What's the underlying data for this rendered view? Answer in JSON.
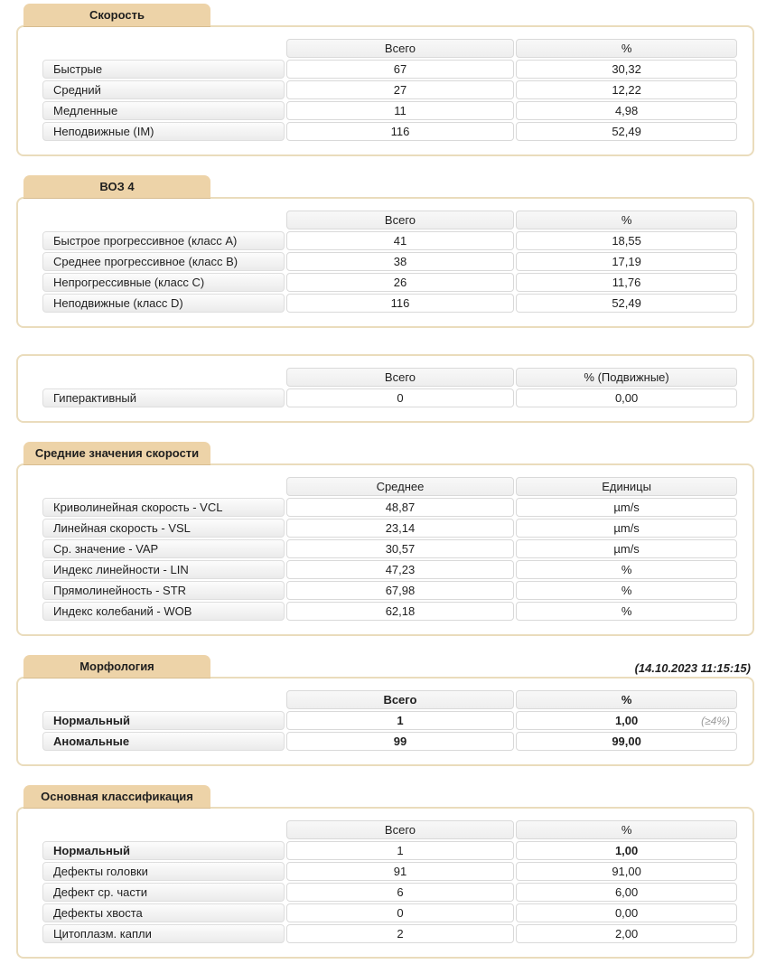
{
  "colors": {
    "tab_background": "#edd3a8",
    "panel_border": "#eadcbc",
    "cell_border": "#d9d9d9",
    "text": "#1f1f1f",
    "annotation_gray": "#9b9b9b"
  },
  "sections": [
    {
      "name": "speed",
      "title": "Скорость",
      "columns": [
        "Всего",
        "%"
      ],
      "rows": [
        {
          "label": "Быстрые",
          "values": [
            "67",
            "30,32"
          ]
        },
        {
          "label": "Средний",
          "values": [
            "27",
            "12,22"
          ]
        },
        {
          "label": "Медленные",
          "values": [
            "11",
            "4,98"
          ]
        },
        {
          "label": "Неподвижные (IM)",
          "values": [
            "116",
            "52,49"
          ]
        }
      ]
    },
    {
      "name": "who4",
      "title": "ВОЗ 4",
      "columns": [
        "Всего",
        "%"
      ],
      "rows": [
        {
          "label": "Быстрое прогрессивное (класс A)",
          "values": [
            "41",
            "18,55"
          ]
        },
        {
          "label": "Среднее прогрессивное (класс B)",
          "values": [
            "38",
            "17,19"
          ]
        },
        {
          "label": "Непрогрессивные (класс C)",
          "values": [
            "26",
            "11,76"
          ]
        },
        {
          "label": "Неподвижные (класс D)",
          "values": [
            "116",
            "52,49"
          ]
        }
      ]
    },
    {
      "name": "hyperactive",
      "title": "",
      "columns": [
        "Всего",
        "% (Подвижные)"
      ],
      "rows": [
        {
          "label": "Гиперактивный",
          "values": [
            "0",
            "0,00"
          ]
        }
      ]
    },
    {
      "name": "avg-speed",
      "title": "Средние значения скорости",
      "columns": [
        "Среднее",
        "Единицы"
      ],
      "rows": [
        {
          "label": "Криволинейная скорость - VCL",
          "values": [
            "48,87",
            "µm/s"
          ]
        },
        {
          "label": "Линейная скорость - VSL",
          "values": [
            "23,14",
            "µm/s"
          ]
        },
        {
          "label": "Ср. значение - VAP",
          "values": [
            "30,57",
            "µm/s"
          ]
        },
        {
          "label": "Индекс линейности - LIN",
          "values": [
            "47,23",
            "%"
          ]
        },
        {
          "label": "Прямолинейность - STR",
          "values": [
            "67,98",
            "%"
          ]
        },
        {
          "label": "Индекс колебаний - WOB",
          "values": [
            "62,18",
            "%"
          ]
        }
      ]
    },
    {
      "name": "morphology",
      "title": "Морфология",
      "timestamp": "(14.10.2023  11:15:15)",
      "bold": true,
      "columns": [
        "Всего",
        "%"
      ],
      "rows": [
        {
          "label": "Нормальный",
          "values": [
            "1",
            "1,00"
          ],
          "annotation": "(≥4%)"
        },
        {
          "label": "Аномальные",
          "values": [
            "99",
            "99,00"
          ]
        }
      ]
    },
    {
      "name": "classification",
      "title": "Основная классификация",
      "columns": [
        "Всего",
        "%"
      ],
      "rows": [
        {
          "label": "Нормальный",
          "values": [
            "1",
            "1,00"
          ],
          "bold_label": true,
          "bold_pct": true
        },
        {
          "label": "Дефекты головки",
          "values": [
            "91",
            "91,00"
          ]
        },
        {
          "label": "Дефект ср. части",
          "values": [
            "6",
            "6,00"
          ]
        },
        {
          "label": "Дефекты хвоста",
          "values": [
            "0",
            "0,00"
          ]
        },
        {
          "label": "Цитоплазм. капли",
          "values": [
            "2",
            "2,00"
          ]
        }
      ]
    }
  ]
}
